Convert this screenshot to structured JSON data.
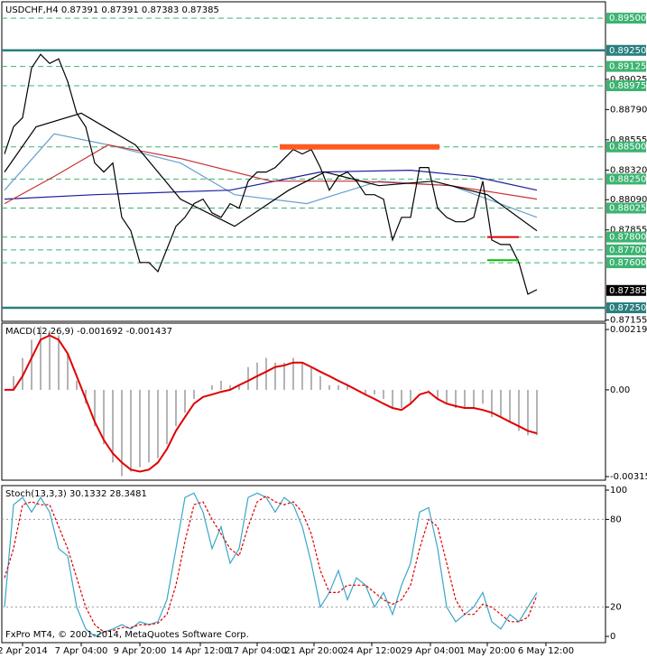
{
  "chart_data": [
    {
      "type": "line",
      "title": "USDCHF,H4  0.87391 0.87391 0.87383 0.87385",
      "xlim": [
        -0.3,
        66.6
      ],
      "ylim": [
        0.87145,
        0.89627
      ],
      "x": [
        0,
        1,
        2,
        3,
        4,
        5,
        6,
        7,
        8,
        9,
        10,
        11,
        12,
        13,
        14,
        15,
        16,
        17,
        18,
        19,
        20,
        21,
        22,
        23,
        24,
        25,
        26,
        27,
        28,
        29,
        30,
        31,
        32,
        33,
        34,
        35,
        36,
        37,
        38,
        39,
        40,
        41,
        42,
        43,
        44,
        45,
        46,
        47,
        48,
        49,
        50,
        51,
        52,
        53,
        54,
        55,
        56,
        57,
        58,
        59
      ],
      "yticks": [
        {
          "value": 0.89025,
          "label": "0.89025"
        },
        {
          "value": 0.8879,
          "label": "0.88790"
        },
        {
          "value": 0.88555,
          "label": "0.88555"
        },
        {
          "value": 0.8832,
          "label": "0.88320"
        },
        {
          "value": 0.8809,
          "label": "0.88090"
        },
        {
          "value": 0.87855,
          "label": "0.87855"
        },
        {
          "value": 0.87155,
          "label": "0.87155"
        }
      ],
      "levels": [
        {
          "value": 0.895,
          "label": "0.89500",
          "color": "#3cb371",
          "style": "dashed"
        },
        {
          "value": 0.8925,
          "label": "0.89250",
          "color": "#2a7f7f",
          "style": "solid"
        },
        {
          "value": 0.89125,
          "label": "0.89125",
          "color": "#3cb371",
          "style": "dashed"
        },
        {
          "value": 0.88975,
          "label": "0.88975",
          "color": "#3cb371",
          "style": "dashed"
        },
        {
          "value": 0.885,
          "label": "0.88500",
          "color": "#3cb371",
          "style": "dashed"
        },
        {
          "value": 0.8825,
          "label": "0.88250",
          "color": "#3cb371",
          "style": "dashed"
        },
        {
          "value": 0.88025,
          "label": "0.88025",
          "color": "#3cb371",
          "style": "dashed"
        },
        {
          "value": 0.878,
          "label": "0.87800",
          "color": "#3cb371",
          "style": "dashed"
        },
        {
          "value": 0.877,
          "label": "0.87700",
          "color": "#3cb371",
          "style": "dashed"
        },
        {
          "value": 0.876,
          "label": "0.87600",
          "color": "#3cb371",
          "style": "dashed"
        },
        {
          "value": 0.8725,
          "label": "0.87250",
          "color": "#2a7f7f",
          "style": "solid"
        }
      ],
      "last": {
        "value": 0.87385,
        "label": "0.87385",
        "color": "#000000"
      },
      "segments": [
        {
          "value": 0.885,
          "x": [
            30.5,
            48.2
          ],
          "color": "#ff5a1f",
          "style": "bold"
        },
        {
          "value": 0.878,
          "x": [
            53.5,
            57
          ],
          "color": "#e00000",
          "style": "thin"
        },
        {
          "value": 0.8762,
          "x": [
            53.5,
            57
          ],
          "color": "#00c000",
          "style": "thin"
        }
      ],
      "series": [
        {
          "type": "line",
          "color": "#6aa0c8",
          "x": [
            0,
            5.5,
            11.5,
            19.5,
            25.5,
            33.5,
            41.5,
            49.5,
            59
          ],
          "values": [
            0.88164,
            0.88601,
            0.88516,
            0.88375,
            0.88129,
            0.88059,
            0.88234,
            0.88199,
            0.87953
          ]
        },
        {
          "type": "line",
          "color": "#1c1c9c",
          "x": [
            0,
            10,
            25,
            35,
            45,
            52,
            59
          ],
          "values": [
            0.88094,
            0.88129,
            0.88164,
            0.88305,
            0.88319,
            0.8827,
            0.88164
          ]
        },
        {
          "type": "line",
          "color": "#c83232",
          "x": [
            0,
            5.5,
            11.5,
            19.5,
            29.5,
            39.5,
            49.5,
            59
          ],
          "values": [
            0.88059,
            0.8827,
            0.88516,
            0.8841,
            0.88234,
            0.88234,
            0.88199,
            0.88094
          ]
        },
        {
          "type": "line",
          "color": "#000000",
          "x": [
            0,
            3.5,
            8.5,
            14.5,
            19.5,
            25.5,
            31.5,
            35.5,
            41.5,
            47.5,
            53.5,
            59
          ],
          "values": [
            0.88305,
            0.88656,
            0.88762,
            0.88516,
            0.88094,
            0.87883,
            0.88164,
            0.88305,
            0.88199,
            0.88234,
            0.88129,
            0.87848
          ]
        },
        {
          "type": "line",
          "color": "#000000",
          "values": [
            0.88445,
            0.88656,
            0.88727,
            0.89113,
            0.89219,
            0.89148,
            0.89184,
            0.89008,
            0.88762,
            0.88656,
            0.88375,
            0.88305,
            0.88375,
            0.87953,
            0.87848,
            0.87602,
            0.87602,
            0.87531,
            0.87707,
            0.87883,
            0.87953,
            0.88059,
            0.88094,
            0.87988,
            0.87953,
            0.88059,
            0.88023,
            0.88234,
            0.88305,
            0.88305,
            0.8834,
            0.8841,
            0.8848,
            0.88445,
            0.8848,
            0.8834,
            0.88164,
            0.8827,
            0.88305,
            0.88234,
            0.88129,
            0.88129,
            0.88094,
            0.87777,
            0.87953,
            0.87953,
            0.8834,
            0.8834,
            0.88023,
            0.87953,
            0.87918,
            0.87918,
            0.87953,
            0.88234,
            0.87777,
            0.87742,
            0.87742,
            0.87602,
            0.87356,
            0.87391
          ]
        }
      ]
    },
    {
      "type": "line",
      "title": "MACD(12,26,9) -0.001692 -0.001437",
      "xlim": [
        -0.3,
        66.6
      ],
      "ylim": [
        -0.003283,
        0.002425
      ],
      "x": [
        0,
        1,
        2,
        3,
        4,
        5,
        6,
        7,
        8,
        9,
        10,
        11,
        12,
        13,
        14,
        15,
        16,
        17,
        18,
        19,
        20,
        21,
        22,
        23,
        24,
        25,
        26,
        27,
        28,
        29,
        30,
        31,
        32,
        33,
        34,
        35,
        36,
        37,
        38,
        39,
        40,
        41,
        42,
        43,
        44,
        45,
        46,
        47,
        48,
        49,
        50,
        51,
        52,
        53,
        54,
        55,
        56,
        57,
        58,
        59
      ],
      "yticks": [
        0.002194,
        {
          "value": 0,
          "label": "0.00"
        },
        -0.003151
      ],
      "series": [
        {
          "type": "bar",
          "color": "#b4b4b4",
          "values": [
            0,
            0.0005,
            0.00116,
            0.00182,
            0.00231,
            0.00215,
            0.00198,
            0.00132,
            0.00033,
            -0.0005,
            -0.00132,
            -0.00198,
            -0.00264,
            -0.00314,
            -0.00297,
            -0.00281,
            -0.00264,
            -0.00248,
            -0.00198,
            -0.00132,
            -0.00083,
            -0.00033,
            0,
            0.00017,
            0.00033,
            0.00017,
            0.00017,
            0.00083,
            0.00099,
            0.00116,
            0.00099,
            0.00099,
            0.00116,
            0.00099,
            0.00083,
            0.0005,
            0.00017,
            0.00017,
            0.00017,
            0,
            -0.00017,
            -0.00017,
            -0.00033,
            -0.00066,
            -0.00066,
            -0.0005,
            0,
            0,
            -0.00033,
            -0.0005,
            -0.00066,
            -0.00066,
            -0.00066,
            -0.0005,
            -0.00099,
            -0.00099,
            -0.00116,
            -0.00149,
            -0.00165,
            -0.00165
          ]
        },
        {
          "type": "line",
          "color": "#e00000",
          "width": 2,
          "values": [
            0,
            0,
            0.0005,
            0.00116,
            0.00182,
            0.00198,
            0.00182,
            0.00132,
            0.0005,
            -0.00033,
            -0.00116,
            -0.00182,
            -0.00231,
            -0.00264,
            -0.0029,
            -0.00297,
            -0.0029,
            -0.00264,
            -0.00215,
            -0.00149,
            -0.00099,
            -0.0005,
            -0.00026,
            -0.00017,
            -7e-05,
            0,
            0.00017,
            0.00033,
            0.0005,
            0.00066,
            0.00083,
            0.00089,
            0.00099,
            0.00099,
            0.00083,
            0.00066,
            0.0005,
            0.00033,
            0.00017,
            0,
            -0.00017,
            -0.00033,
            -0.0005,
            -0.00066,
            -0.00073,
            -0.0005,
            -0.00017,
            -7e-05,
            -0.00033,
            -0.0005,
            -0.00059,
            -0.00066,
            -0.00066,
            -0.00073,
            -0.00083,
            -0.00099,
            -0.00116,
            -0.00132,
            -0.00149,
            -0.00158
          ]
        }
      ]
    },
    {
      "type": "line",
      "title": "Stoch(13,3,3) 30.1332 28.3481",
      "annotation": "FxPro MT4, © 2001-2014, MetaQuotes Software Corp.",
      "xlim": [
        -0.3,
        66.6
      ],
      "ylim": [
        -4.3,
        103.1
      ],
      "x": [
        0,
        1,
        2,
        3,
        4,
        5,
        6,
        7,
        8,
        9,
        10,
        11,
        12,
        13,
        14,
        15,
        16,
        17,
        18,
        19,
        20,
        21,
        22,
        23,
        24,
        25,
        26,
        27,
        28,
        29,
        30,
        31,
        32,
        33,
        34,
        35,
        36,
        37,
        38,
        39,
        40,
        41,
        42,
        43,
        44,
        45,
        46,
        47,
        48,
        49,
        50,
        51,
        52,
        53,
        54,
        55,
        56,
        57,
        58,
        59
      ],
      "yticks": [
        100,
        80,
        20,
        0
      ],
      "xticks": [
        {
          "value": 2,
          "label": "2 Apr 2014"
        },
        {
          "value": 8.5,
          "label": "7 Apr 04:00"
        },
        {
          "value": 15,
          "label": "9 Apr 20:00"
        },
        {
          "value": 21.7,
          "label": "14 Apr 12:00"
        },
        {
          "value": 28,
          "label": "17 Apr 04:00"
        },
        {
          "value": 34.3,
          "label": "21 Apr 20:00"
        },
        {
          "value": 40.7,
          "label": "24 Apr 12:00"
        },
        {
          "value": 47.2,
          "label": "29 Apr 04:00"
        },
        {
          "value": 53.5,
          "label": "1 May 20:00"
        },
        {
          "value": 60,
          "label": "6 May 12:00"
        }
      ],
      "levels": [
        {
          "value": 80,
          "color": "#999999",
          "style": "dotted"
        },
        {
          "value": 20,
          "color": "#999999",
          "style": "dotted"
        }
      ],
      "series": [
        {
          "type": "line",
          "color": "#3aa6c8",
          "values": [
            20,
            90,
            95,
            85,
            95,
            85,
            60,
            55,
            20,
            5,
            0,
            3,
            5,
            8,
            5,
            10,
            8,
            10,
            25,
            60,
            95,
            98,
            85,
            60,
            75,
            50,
            60,
            95,
            98,
            95,
            85,
            95,
            90,
            75,
            50,
            20,
            30,
            45,
            25,
            40,
            35,
            20,
            30,
            15,
            35,
            50,
            85,
            88,
            60,
            20,
            10,
            15,
            20,
            30,
            10,
            5,
            15,
            10,
            20,
            30
          ]
        },
        {
          "type": "line",
          "color": "#e00000",
          "dash": true,
          "values": [
            40,
            60,
            90,
            92,
            90,
            90,
            75,
            60,
            40,
            20,
            8,
            3,
            4,
            6,
            6,
            8,
            8,
            9,
            15,
            35,
            65,
            90,
            92,
            80,
            70,
            60,
            55,
            75,
            92,
            96,
            92,
            90,
            92,
            85,
            70,
            45,
            30,
            30,
            35,
            35,
            35,
            30,
            25,
            22,
            25,
            35,
            60,
            80,
            75,
            50,
            25,
            15,
            15,
            22,
            20,
            15,
            10,
            10,
            13,
            28
          ]
        }
      ]
    }
  ]
}
